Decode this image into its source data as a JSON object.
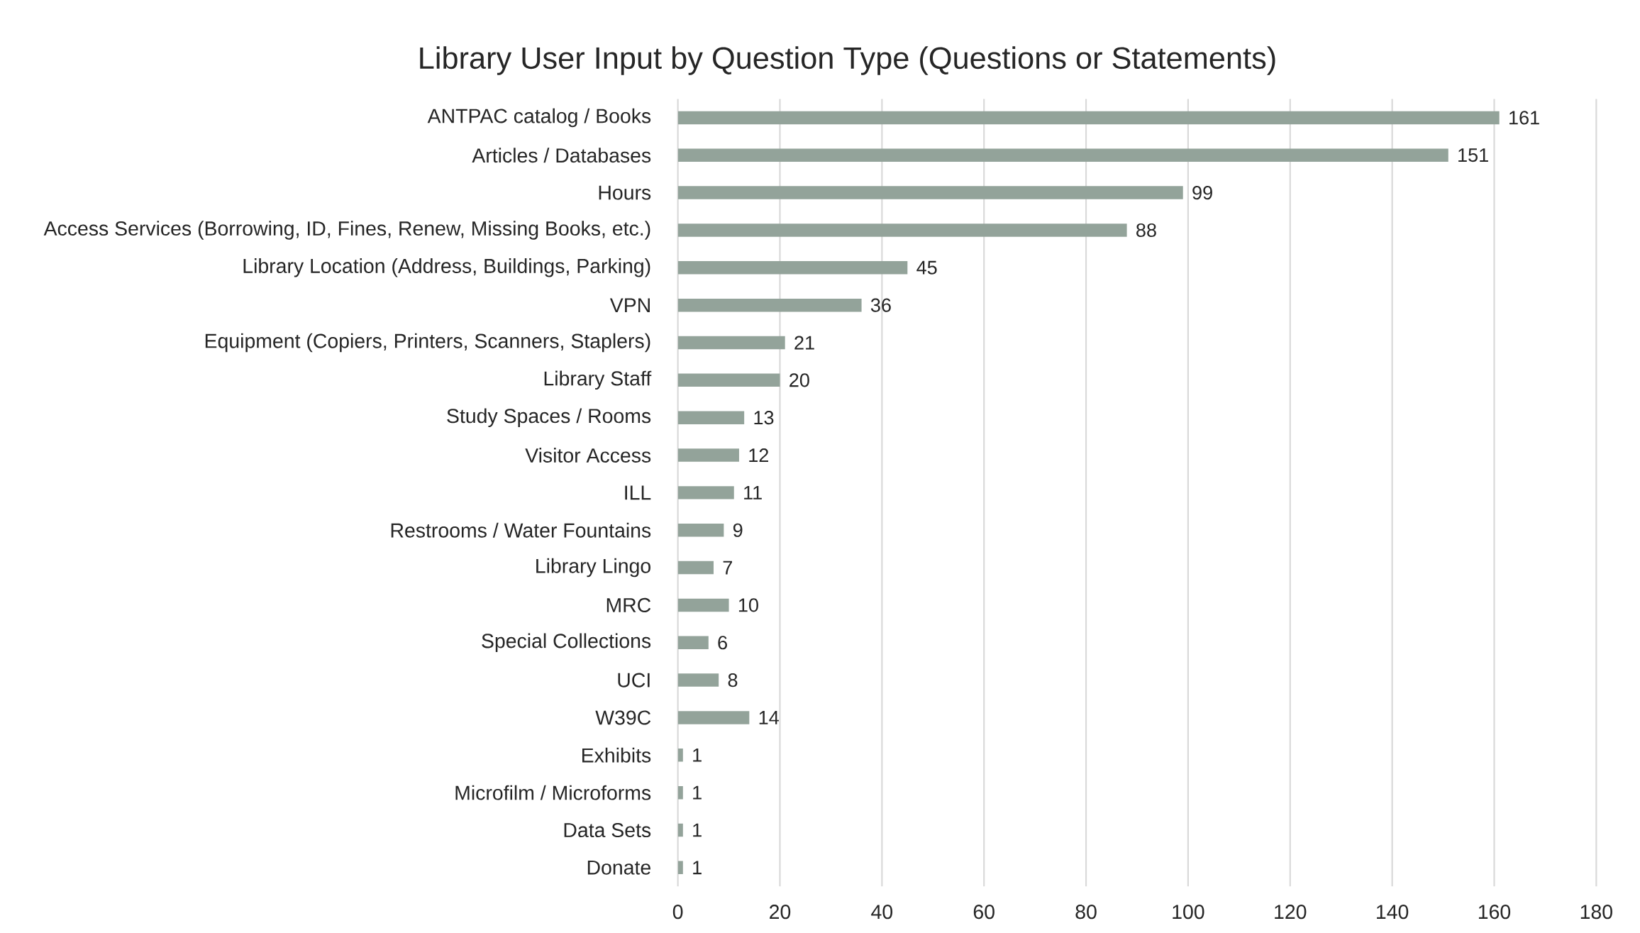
{
  "chart_data": {
    "type": "bar",
    "orientation": "horizontal",
    "title": "Library User Input by Question Type (Questions or Statements)",
    "categories": [
      "ANTPAC catalog / Books",
      "Articles / Databases",
      "Hours",
      "Access Services (Borrowing, ID, Fines, Renew, Missing Books, etc.)",
      "Library Location (Address, Buildings, Parking)",
      "VPN",
      "Equipment (Copiers, Printers, Scanners, Staplers)",
      "Library Staff",
      "Study Spaces / Rooms",
      "Visitor Access",
      "ILL",
      "Restrooms / Water Fountains",
      "Library Lingo",
      "MRC",
      "Special Collections",
      "UCI",
      "W39C",
      "Exhibits",
      "Microfilm / Microforms",
      "Data Sets",
      "Donate"
    ],
    "values": [
      161,
      151,
      99,
      88,
      45,
      36,
      21,
      20,
      13,
      12,
      11,
      9,
      7,
      10,
      6,
      8,
      14,
      1,
      1,
      1,
      1
    ],
    "color": "#93a39a",
    "xlim": [
      0,
      180
    ],
    "xticks": [
      0,
      20,
      40,
      60,
      80,
      100,
      120,
      140,
      160,
      180
    ],
    "grid": "x",
    "data_labels": true
  }
}
